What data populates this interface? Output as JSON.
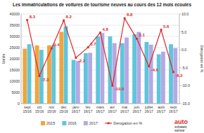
{
  "chart_data": {
    "type": "bar",
    "title": "Les immatriculations de voitures de tourisme neuves au cours des 12 mois écoulés",
    "ylabel": "Unités",
    "y2label": "Dérogation en %",
    "categories": [
      "sept 15/16",
      "oct 15/16",
      "nov 15/16",
      "déc 15/16",
      "janv 16/17",
      "fév 16/17",
      "mars 16/17",
      "avr 16/17",
      "mai 16/17",
      "juin 16/17",
      "juillet 16/17",
      "août 16/17",
      "sept 16/17"
    ],
    "series": [
      {
        "name": "2015",
        "color": "#f2a43a",
        "type": "bar",
        "values": [
          24500,
          26000,
          26000,
          32000,
          null,
          null,
          null,
          null,
          null,
          null,
          null,
          null,
          null
        ]
      },
      {
        "name": "2016",
        "color": "#5ec6dc",
        "type": "bar",
        "values": [
          26500,
          24000,
          26100,
          34500,
          19500,
          22500,
          30000,
          30000,
          27000,
          31000,
          27500,
          22000,
          26500
        ]
      },
      {
        "name": "2017",
        "color": "#b6a8e2",
        "type": "bar",
        "values": [
          null,
          null,
          null,
          null,
          19000,
          22700,
          31500,
          27000,
          29500,
          32000,
          26300,
          23200,
          24800
        ]
      },
      {
        "name": "Dérogation en %",
        "color": "#e3262a",
        "type": "line",
        "axis": "y2",
        "marker": "square",
        "line_style": "solid",
        "data_labels": true,
        "values": [
          8.3,
          -7.3,
          0.4,
          8.2,
          -2.2,
          0.7,
          4.8,
          -10.0,
          8.8,
          3.1,
          -4.6,
          5.6,
          -6.2
        ],
        "value_labels": [
          "8.3",
          "-7.3",
          "0.4",
          "8.2",
          "-2.2",
          "0.7",
          "4.8",
          "-10.0",
          "8.8",
          "3.1",
          "-4.6",
          "5.6",
          "-6.2"
        ]
      }
    ],
    "ylim": [
      0,
      40000
    ],
    "yticks": [
      0,
      5000,
      10000,
      15000,
      20000,
      25000,
      30000,
      35000,
      40000
    ],
    "y2lim": [
      -15,
      10
    ],
    "y2ticks": [
      {
        "value": -15,
        "label": "-15.0"
      },
      {
        "value": -10,
        "label": "-10.0"
      },
      {
        "value": -5,
        "label": "-5.0"
      },
      {
        "value": 0,
        "label": "0.0"
      },
      {
        "value": 5,
        "label": "5.0"
      },
      {
        "value": 10,
        "label": "10.0"
      }
    ],
    "grid": true,
    "legend": "bottom",
    "annotations": [
      "auto",
      "schweiz",
      "suisse"
    ]
  }
}
